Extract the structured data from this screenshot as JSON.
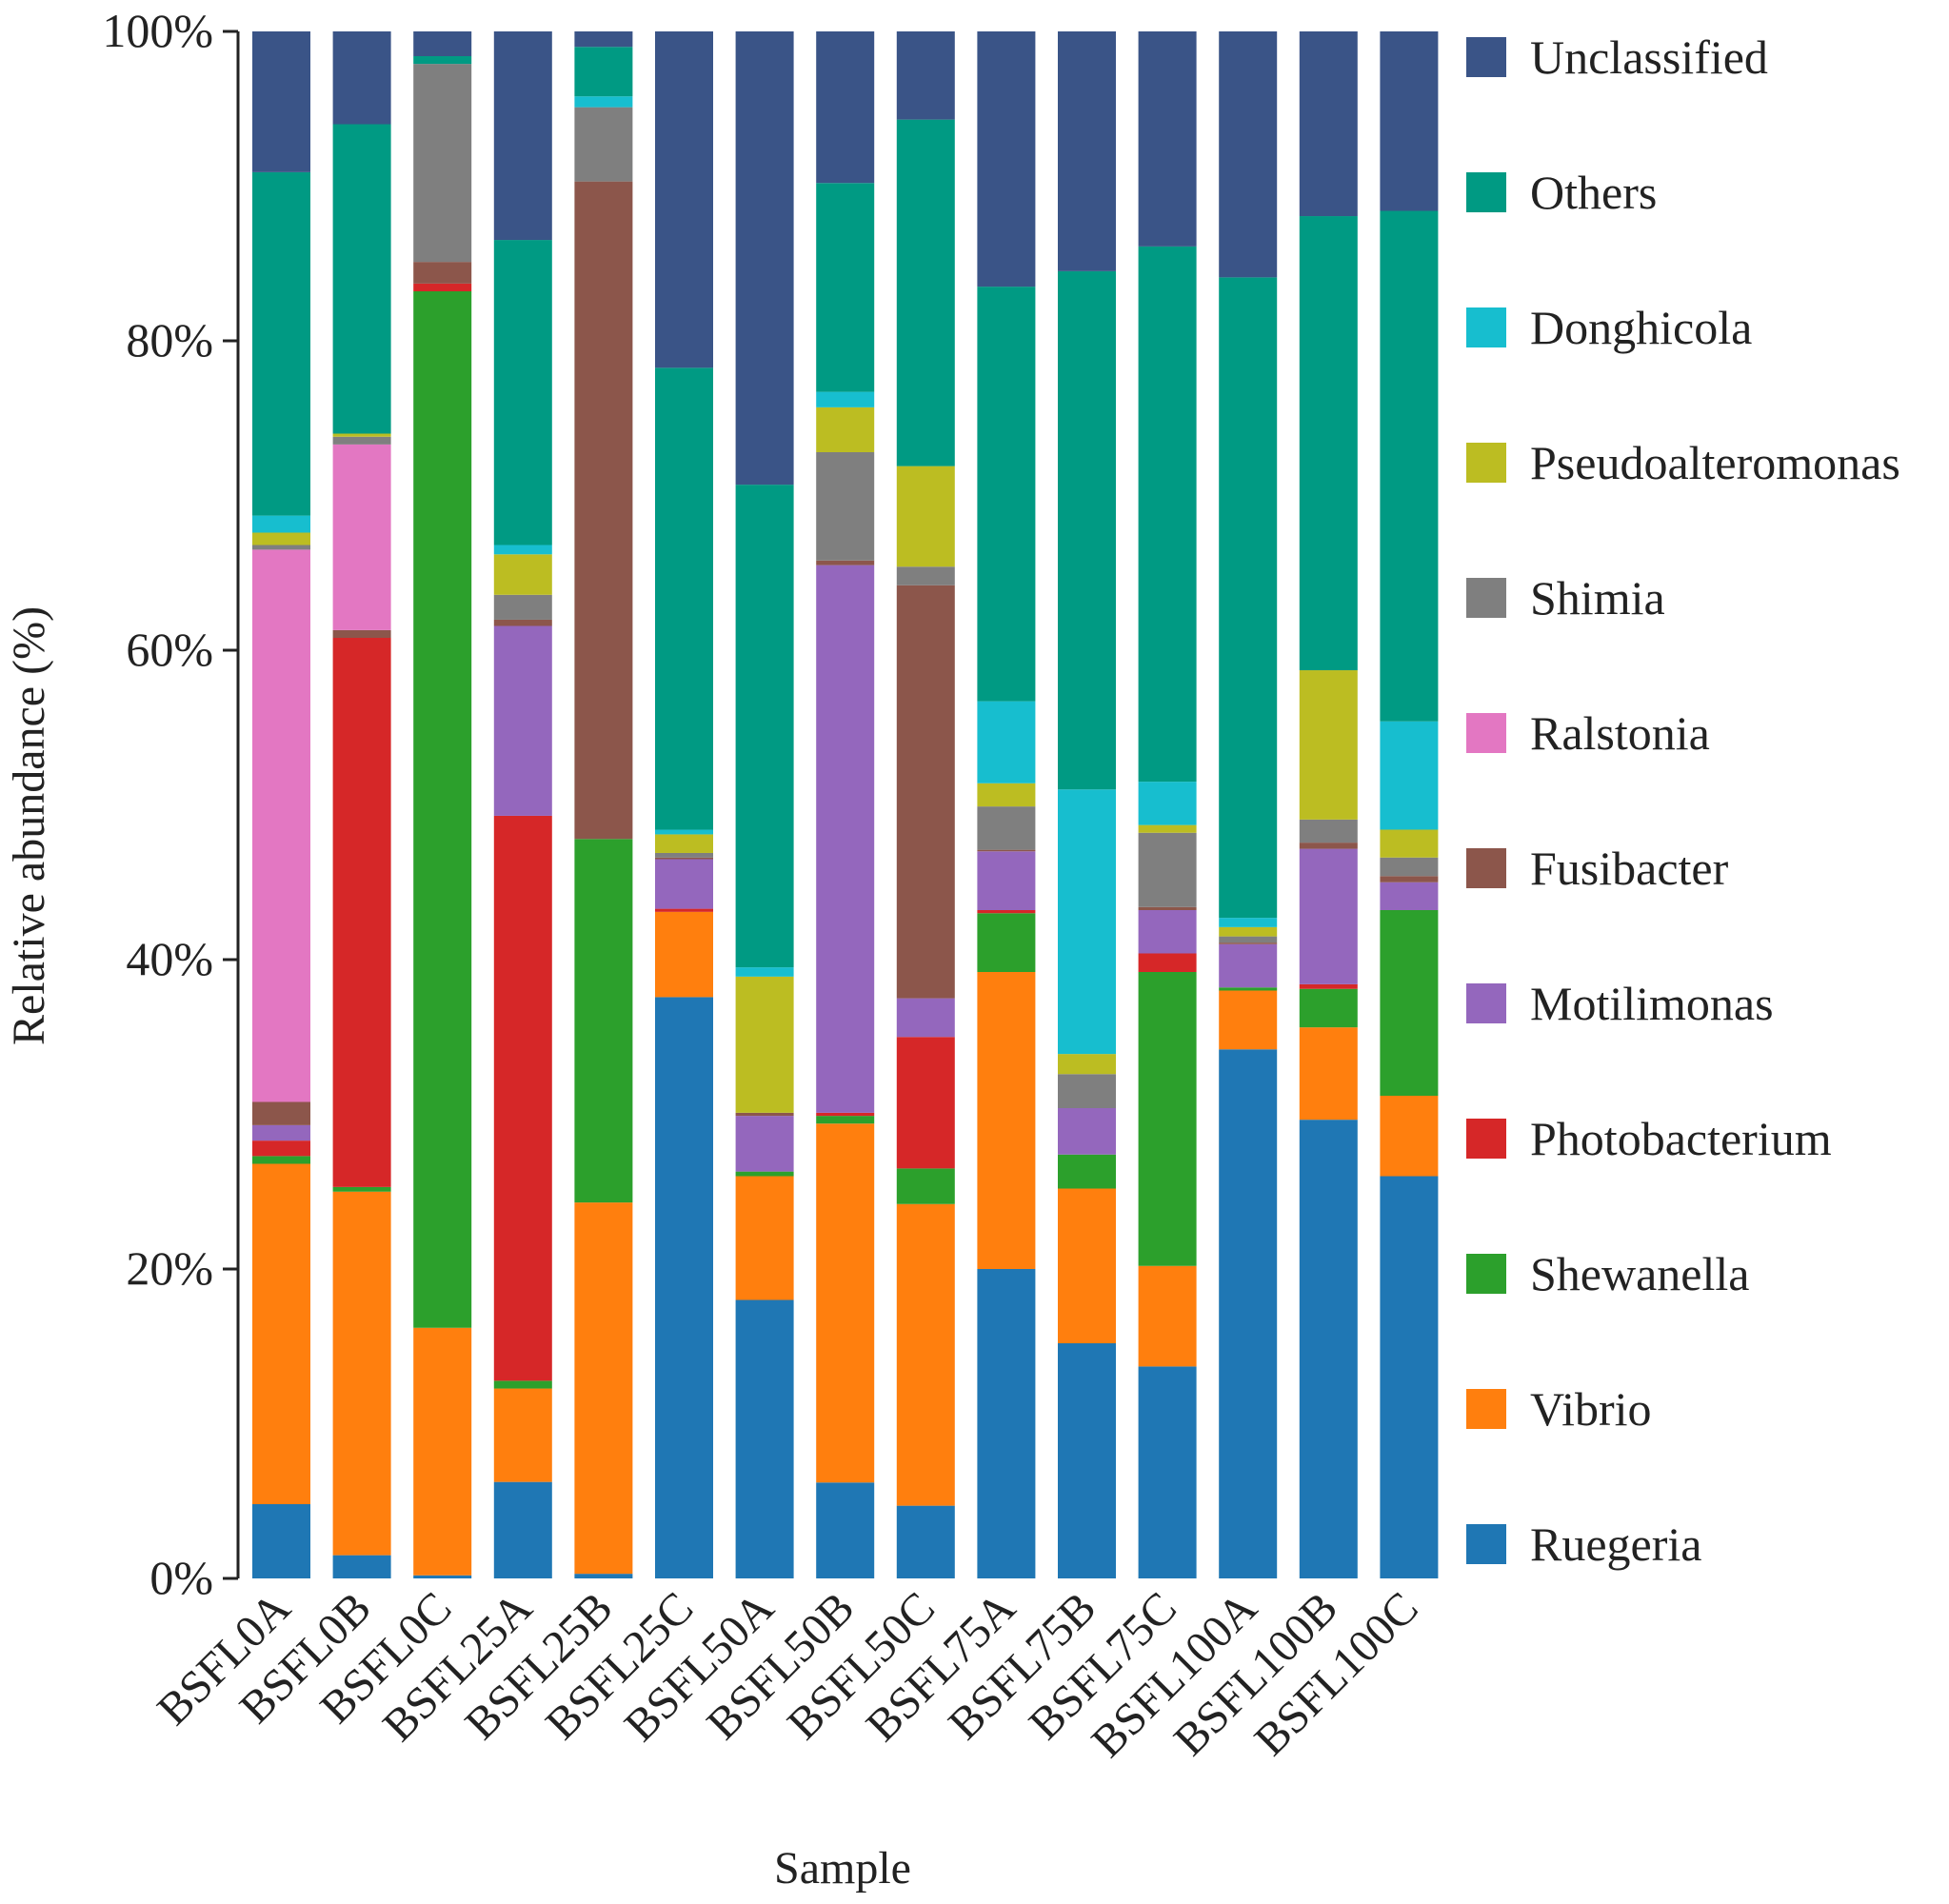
{
  "chart_data": {
    "type": "bar",
    "stacked": true,
    "title": "",
    "xlabel": "Sample",
    "ylabel": "Relative abundance (%)",
    "ylim": [
      0,
      100
    ],
    "yticks": [
      "0%",
      "20%",
      "40%",
      "60%",
      "80%",
      "100%"
    ],
    "legend_position": "right",
    "categories": [
      "BSFL0A",
      "BSFL0B",
      "BSFL0C",
      "BSFL25A",
      "BSFL25B",
      "BSFL25C",
      "BSFL50A",
      "BSFL50B",
      "BSFL50C",
      "BSFL75A",
      "BSFL75B",
      "BSFL75C",
      "BSFL100A",
      "BSFL100B",
      "BSFL100C"
    ],
    "series": [
      {
        "name": "Ruegeria",
        "color": "#1f77b4",
        "values": [
          4.8,
          1.5,
          0.2,
          6.2,
          0.3,
          37.5,
          18.0,
          6.2,
          4.7,
          20.0,
          15.2,
          13.7,
          34.2,
          29.8,
          26.0
        ]
      },
      {
        "name": "Vibrio",
        "color": "#ff7f0e",
        "values": [
          22.0,
          23.5,
          16.0,
          6.0,
          24.0,
          5.5,
          8.0,
          23.2,
          19.5,
          19.2,
          10.0,
          6.5,
          3.8,
          6.0,
          5.2
        ]
      },
      {
        "name": "Shewanella",
        "color": "#2ca02c",
        "values": [
          0.5,
          0.3,
          67.0,
          0.5,
          23.5,
          0.0,
          0.3,
          0.5,
          2.3,
          3.8,
          2.2,
          19.0,
          0.2,
          2.5,
          12.0
        ]
      },
      {
        "name": "Photobacterium",
        "color": "#d62728",
        "values": [
          1.0,
          35.5,
          0.5,
          36.3,
          0.0,
          0.2,
          0.0,
          0.2,
          8.5,
          0.2,
          0.0,
          1.2,
          0.0,
          0.3,
          0.0
        ]
      },
      {
        "name": "Motilimonas",
        "color": "#9467bd",
        "values": [
          1.0,
          0.0,
          0.0,
          12.2,
          0.0,
          3.2,
          3.6,
          35.4,
          2.5,
          3.8,
          3.0,
          2.8,
          2.8,
          8.8,
          1.8
        ]
      },
      {
        "name": "Fusibacter",
        "color": "#8c564b",
        "values": [
          1.5,
          0.5,
          1.4,
          0.4,
          42.5,
          0.1,
          0.2,
          0.3,
          26.7,
          0.1,
          0.0,
          0.2,
          0.1,
          0.4,
          0.4
        ]
      },
      {
        "name": "Ralstonia",
        "color": "#e377c2",
        "values": [
          35.7,
          12.0,
          0.0,
          0.0,
          0.0,
          0.0,
          0.0,
          0.0,
          0.0,
          0.0,
          0.0,
          0.0,
          0.0,
          0.0,
          0.0
        ]
      },
      {
        "name": "Shimia",
        "color": "#7f7f7f",
        "values": [
          0.3,
          0.5,
          12.8,
          1.6,
          4.8,
          0.3,
          0.0,
          7.0,
          1.2,
          2.8,
          2.2,
          4.8,
          0.4,
          1.5,
          1.2
        ]
      },
      {
        "name": "Pseudoalteromonas",
        "color": "#bcbd22",
        "values": [
          0.8,
          0.2,
          0.0,
          2.6,
          0.0,
          1.2,
          8.8,
          2.9,
          6.5,
          1.5,
          1.3,
          0.5,
          0.6,
          9.7,
          1.8
        ]
      },
      {
        "name": "Donghicola",
        "color": "#17becf",
        "values": [
          1.1,
          0.0,
          0.0,
          0.6,
          0.7,
          0.3,
          0.6,
          1.0,
          0.0,
          5.3,
          17.1,
          2.8,
          0.6,
          0.0,
          7.0
        ]
      },
      {
        "name": "Others",
        "color": "#009a83",
        "values": [
          22.2,
          20.0,
          0.5,
          19.6,
          3.2,
          29.8,
          31.2,
          13.5,
          22.4,
          26.8,
          33.5,
          34.6,
          41.4,
          29.5,
          33.0
        ]
      },
      {
        "name": "Unclassified",
        "color": "#3a5487",
        "values": [
          9.1,
          6.0,
          1.6,
          13.4,
          1.0,
          21.7,
          29.3,
          9.8,
          5.7,
          16.5,
          15.5,
          13.9,
          15.9,
          12.0,
          11.6
        ]
      }
    ]
  }
}
